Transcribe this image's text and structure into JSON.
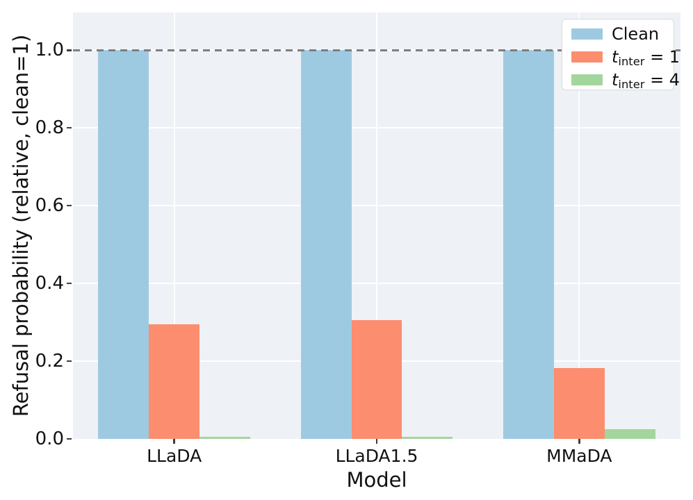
{
  "figure": {
    "background": "#ffffff",
    "plot_background": "#eef1f6",
    "grid_color": "#ffffff",
    "tick_color": "#3d3d3d"
  },
  "chart_data": {
    "type": "bar",
    "title": "",
    "xlabel": "Model",
    "ylabel": "Refusal probability (relative, clean=1)",
    "categories": [
      "LLaDA",
      "LLaDA1.5",
      "MMaDA"
    ],
    "series": [
      {
        "name": "Clean",
        "values": [
          1.0,
          1.0,
          1.0
        ],
        "color": "#9ecae1"
      },
      {
        "name": "t_inter = 1",
        "values": [
          0.295,
          0.305,
          0.183
        ],
        "color": "#fc8d6e"
      },
      {
        "name": "t_inter = 4",
        "values": [
          0.005,
          0.005,
          0.025
        ],
        "color": "#a3d69d"
      }
    ],
    "yticks": [
      0.0,
      0.2,
      0.4,
      0.6,
      0.8,
      1.0
    ],
    "ylim": [
      0,
      1.097
    ],
    "grid": true,
    "legend_position": "upper right",
    "reference_line": {
      "y": 1.0,
      "style": "dashed",
      "color": "#7e7e7e"
    }
  },
  "legend": {
    "items": [
      {
        "plain": "Clean",
        "color": "#9ecae1"
      },
      {
        "var": "t",
        "sub": "inter",
        "rhs": " = 1",
        "color": "#fc8d6e"
      },
      {
        "var": "t",
        "sub": "inter",
        "rhs": " = 4",
        "color": "#a3d69d"
      }
    ]
  }
}
